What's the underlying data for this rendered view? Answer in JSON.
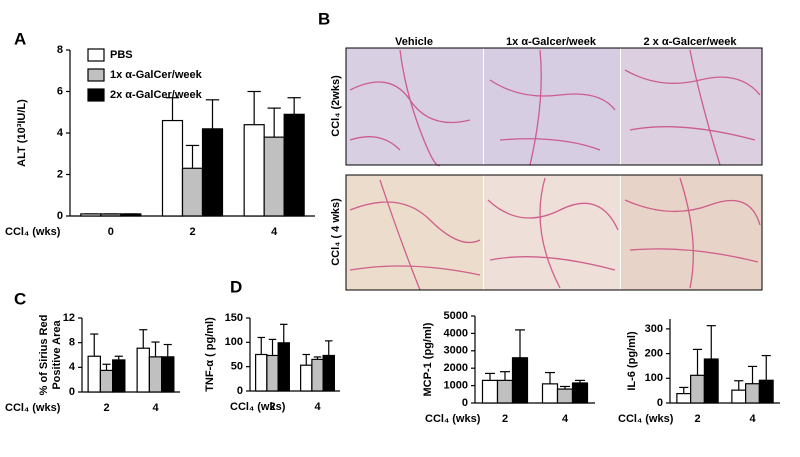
{
  "chart_data": [
    {
      "type": "bar",
      "panel": "A",
      "y_label": "ALT (10³IU/L)",
      "x_label": "CCl₄ (wks)",
      "categories": [
        "0",
        "2",
        "4"
      ],
      "ylim": [
        0,
        8
      ],
      "yticks": [
        0,
        2,
        4,
        6,
        8
      ],
      "series": [
        {
          "name": "PBS",
          "color": "#ffffff",
          "values": [
            0.1,
            4.6,
            4.4
          ],
          "errors": [
            0,
            1.1,
            1.6
          ]
        },
        {
          "name": "1x α-GalCer/week",
          "color": "#c0c0c0",
          "values": [
            0.1,
            2.3,
            3.8
          ],
          "errors": [
            0,
            1.1,
            1.4
          ]
        },
        {
          "name": "2x α-GalCer/week",
          "color": "#000000",
          "values": [
            0.1,
            4.2,
            4.9
          ],
          "errors": [
            0,
            1.4,
            0.8
          ]
        }
      ]
    },
    {
      "type": "bar",
      "panel": "C",
      "y_label": [
        "% of Sirius Red",
        "Positive Area"
      ],
      "x_label": "CCl₄ (wks)",
      "categories": [
        "2",
        "4"
      ],
      "ylim": [
        0,
        12
      ],
      "yticks": [
        0,
        4,
        8,
        12
      ],
      "series": [
        {
          "color": "#ffffff",
          "values": [
            5.8,
            7.1
          ],
          "errors": [
            3.6,
            3.0
          ]
        },
        {
          "color": "#c0c0c0",
          "values": [
            3.5,
            5.7
          ],
          "errors": [
            1.0,
            2.4
          ]
        },
        {
          "color": "#000000",
          "values": [
            5.2,
            5.7
          ],
          "errors": [
            0.6,
            2.0
          ]
        }
      ]
    },
    {
      "type": "bar",
      "panel": "D",
      "y_label": "TNF-α ( pg/ml)",
      "x_label": "CCl₄ (wks)",
      "categories": [
        "2",
        "4"
      ],
      "ylim": [
        0,
        150
      ],
      "yticks": [
        0,
        50,
        100,
        150
      ],
      "series": [
        {
          "color": "#ffffff",
          "values": [
            75,
            53
          ],
          "errors": [
            35,
            22
          ]
        },
        {
          "color": "#c0c0c0",
          "values": [
            73,
            65
          ],
          "errors": [
            33,
            5
          ]
        },
        {
          "color": "#000000",
          "values": [
            99,
            73
          ],
          "errors": [
            38,
            30
          ]
        }
      ]
    },
    {
      "type": "bar",
      "y_label": "MCP-1 (pg/ml)",
      "x_label": "CCl₄ (wks)",
      "categories": [
        "2",
        "4"
      ],
      "ylim": [
        0,
        5000
      ],
      "yticks": [
        0,
        1000,
        2000,
        3000,
        4000,
        5000
      ],
      "series": [
        {
          "color": "#ffffff",
          "values": [
            1300,
            1100
          ],
          "errors": [
            400,
            650
          ]
        },
        {
          "color": "#c0c0c0",
          "values": [
            1300,
            800
          ],
          "errors": [
            500,
            150
          ]
        },
        {
          "color": "#000000",
          "values": [
            2600,
            1150
          ],
          "errors": [
            1600,
            150
          ]
        }
      ]
    },
    {
      "type": "bar",
      "y_label": "IL-6 (pg/ml)",
      "x_label": "CCl₄ (wks)",
      "categories": [
        "2",
        "4"
      ],
      "ylim": [
        0,
        340
      ],
      "yticks": [
        0,
        100,
        200,
        300
      ],
      "series": [
        {
          "color": "#ffffff",
          "values": [
            38,
            52
          ],
          "errors": [
            25,
            38
          ]
        },
        {
          "color": "#c0c0c0",
          "values": [
            112,
            78
          ],
          "errors": [
            105,
            70
          ]
        },
        {
          "color": "#000000",
          "values": [
            178,
            92
          ],
          "errors": [
            135,
            100
          ]
        }
      ]
    }
  ],
  "micrographs": {
    "panel": "B",
    "columns": [
      "Vehicle",
      "1x α-Galcer/week",
      "2 x α-Galcer/week"
    ],
    "rows": [
      "CCl₄ (2wks)",
      "CCl₄ ( 4 wks)"
    ]
  }
}
